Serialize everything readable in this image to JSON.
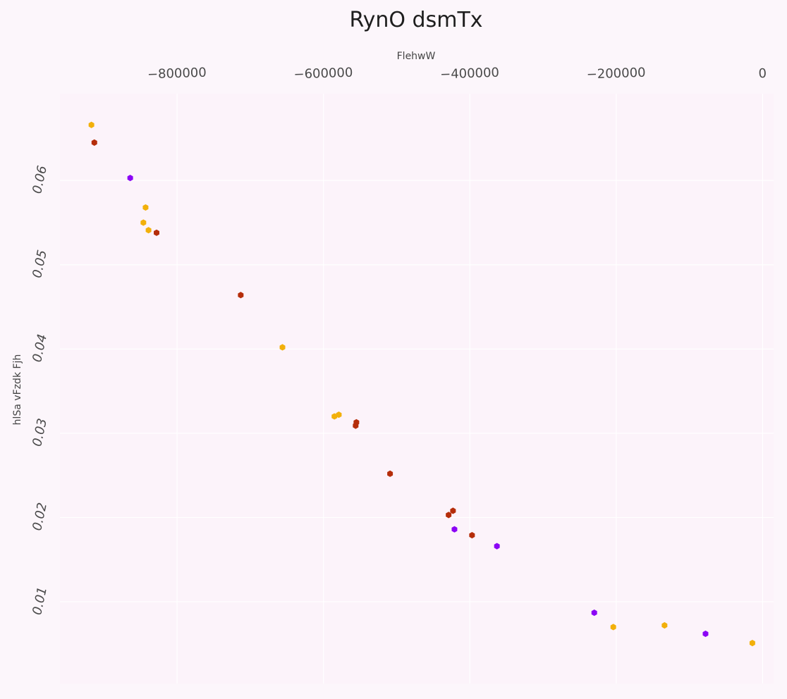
{
  "chart_data": {
    "type": "scatter",
    "title": "RynO     dsmTx",
    "xlabel": "FlehwW",
    "ylabel": "hlSa vFzdk Fjh",
    "xlim": [
      -960000,
      15000
    ],
    "ylim": [
      0.0003,
      0.0703
    ],
    "xticks": [
      -800000,
      -600000,
      -400000,
      -200000,
      0
    ],
    "xtick_labels": [
      "−800000",
      "−600000",
      "−400000",
      "−200000",
      "0"
    ],
    "yticks": [
      0.01,
      0.02,
      0.03,
      0.04,
      0.05,
      0.06
    ],
    "ytick_labels": [
      "0.01",
      "0.02",
      "0.03",
      "0.04",
      "0.05",
      "0.06"
    ],
    "x_axis_position": "top",
    "grid": true,
    "legend": "none",
    "colors": {
      "background": "#fcf6fb",
      "plot_background": "#fcf3fa",
      "grid": "#ffffff",
      "series_a": "#f2b00a",
      "series_b": "#b52d0a",
      "series_c": "#8b05f5"
    },
    "marker": "hexagon",
    "series": [
      {
        "color": "#f2b00a",
        "points": [
          {
            "x": -917000,
            "y": 0.0666
          },
          {
            "x": -843000,
            "y": 0.0568
          },
          {
            "x": -846000,
            "y": 0.055
          },
          {
            "x": -839000,
            "y": 0.0541
          },
          {
            "x": -656000,
            "y": 0.0402
          },
          {
            "x": -585000,
            "y": 0.032
          },
          {
            "x": -579000,
            "y": 0.0322
          },
          {
            "x": -204000,
            "y": 0.007
          },
          {
            "x": -134000,
            "y": 0.0072
          },
          {
            "x": -14000,
            "y": 0.0051
          }
        ]
      },
      {
        "color": "#b52d0a",
        "points": [
          {
            "x": -913000,
            "y": 0.0645
          },
          {
            "x": -828000,
            "y": 0.0538
          },
          {
            "x": -713000,
            "y": 0.0464
          },
          {
            "x": -556000,
            "y": 0.0309
          },
          {
            "x": -555000,
            "y": 0.0313
          },
          {
            "x": -509000,
            "y": 0.0252
          },
          {
            "x": -423000,
            "y": 0.0208
          },
          {
            "x": -429000,
            "y": 0.0203
          },
          {
            "x": -397000,
            "y": 0.0179
          }
        ]
      },
      {
        "color": "#8b05f5",
        "points": [
          {
            "x": -864000,
            "y": 0.0603
          },
          {
            "x": -421000,
            "y": 0.0186
          },
          {
            "x": -363000,
            "y": 0.0166
          },
          {
            "x": -230000,
            "y": 0.0087
          },
          {
            "x": -78000,
            "y": 0.0062
          }
        ]
      }
    ]
  }
}
